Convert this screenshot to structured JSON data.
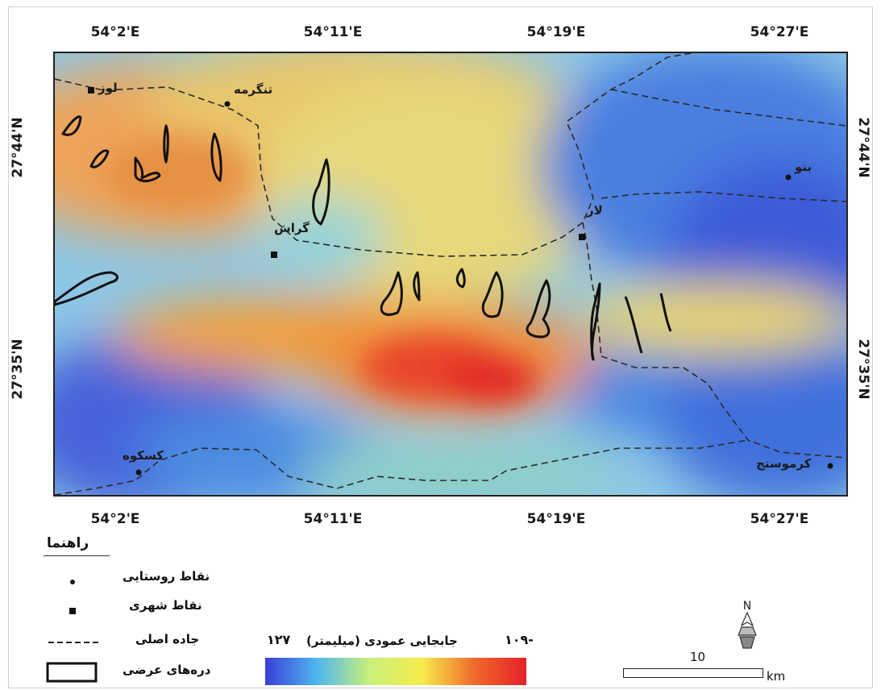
{
  "map": {
    "lon_ticks": [
      "54°2'E",
      "54°11'E",
      "54°19'E",
      "54°27'E"
    ],
    "lat_ticks": [
      "27°44'N",
      "27°35'N"
    ],
    "places": {
      "lowz": "لوز",
      "tangerme": "تنگرمه",
      "gerash": "گراش",
      "lar": "لار",
      "banu": "بنو",
      "kaskouh": "کسکوه",
      "kormostaj": "کرموستج"
    }
  },
  "legend": {
    "title": "راهنما",
    "rural": "نقاط روستایی",
    "urban": "نقاط شهری",
    "road": "جاده اصلی",
    "valleys": "دره‌های عرضی"
  },
  "colorbar": {
    "title": "جابجایی عمودی (میلیمتر)",
    "min": "۱۰۹-",
    "max": "۱۲۷",
    "colors": [
      "#3a3fd6",
      "#4fb7f0",
      "#c9f07a",
      "#f6ec4c",
      "#f06a2a",
      "#e5202a"
    ]
  },
  "scale": {
    "value": "10",
    "unit": "km"
  },
  "north": {
    "label": "N"
  }
}
